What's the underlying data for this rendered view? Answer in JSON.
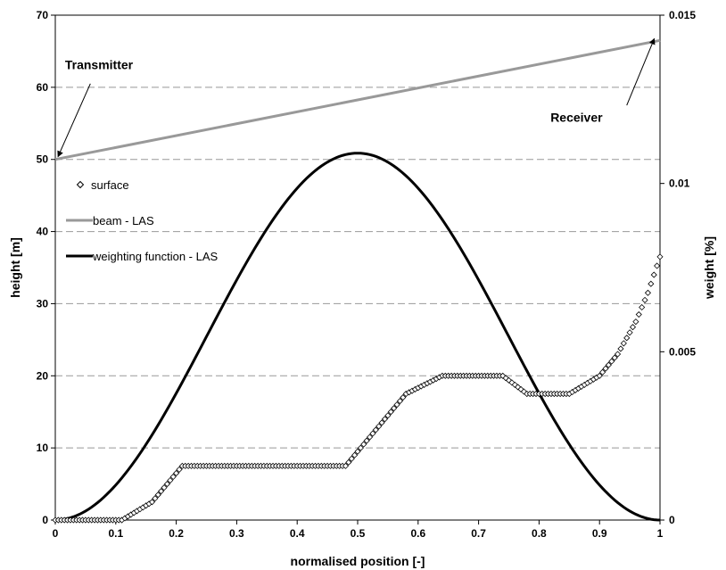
{
  "chart_data": {
    "type": "line",
    "title": "",
    "xlabel": "normalised position [-]",
    "ylabel_left": "height [m]",
    "ylabel_right": "weight [%]",
    "xlim": [
      0,
      1
    ],
    "ylim_left": [
      0,
      70
    ],
    "ylim_right": [
      0,
      0.015
    ],
    "x_ticks": [
      "0",
      "0.1",
      "0.2",
      "0.3",
      "0.4",
      "0.5",
      "0.6",
      "0.7",
      "0.8",
      "0.9",
      "1"
    ],
    "y_left_ticks": [
      "0",
      "10",
      "20",
      "30",
      "40",
      "50",
      "60",
      "70"
    ],
    "y_right_ticks": [
      "0",
      "0.005",
      "0.01",
      "0.015"
    ],
    "grid": "horizontal dashed",
    "legend_position": "left-center",
    "series": [
      {
        "name": "surface",
        "axis": "left",
        "marker": "diamond",
        "color": "#000000",
        "points": [
          [
            0,
            0
          ],
          [
            0.11,
            0
          ],
          [
            0.16,
            2.5
          ],
          [
            0.21,
            7.5
          ],
          [
            0.48,
            7.5
          ],
          [
            0.58,
            17.5
          ],
          [
            0.64,
            20
          ],
          [
            0.74,
            20
          ],
          [
            0.78,
            17.5
          ],
          [
            0.85,
            17.5
          ],
          [
            0.9,
            20
          ],
          [
            0.93,
            23
          ],
          [
            0.96,
            27.5
          ],
          [
            0.98,
            31.5
          ],
          [
            1.0,
            36.5
          ]
        ]
      },
      {
        "name": "beam - LAS",
        "axis": "left",
        "color": "#999999",
        "points": [
          [
            0,
            50
          ],
          [
            1,
            66.5
          ]
        ]
      },
      {
        "name": "weighting function - LAS",
        "axis": "right",
        "color": "#000000",
        "peak_x": 0.5,
        "peak_value": 0.0109
      }
    ],
    "annotations": [
      {
        "text": "Transmitter",
        "target": [
          0,
          50
        ],
        "text_at": [
          0.016,
          62.5
        ]
      },
      {
        "text": "Receiver",
        "target": [
          0.995,
          66.5
        ],
        "text_at": [
          0.915,
          55.2
        ]
      }
    ]
  }
}
